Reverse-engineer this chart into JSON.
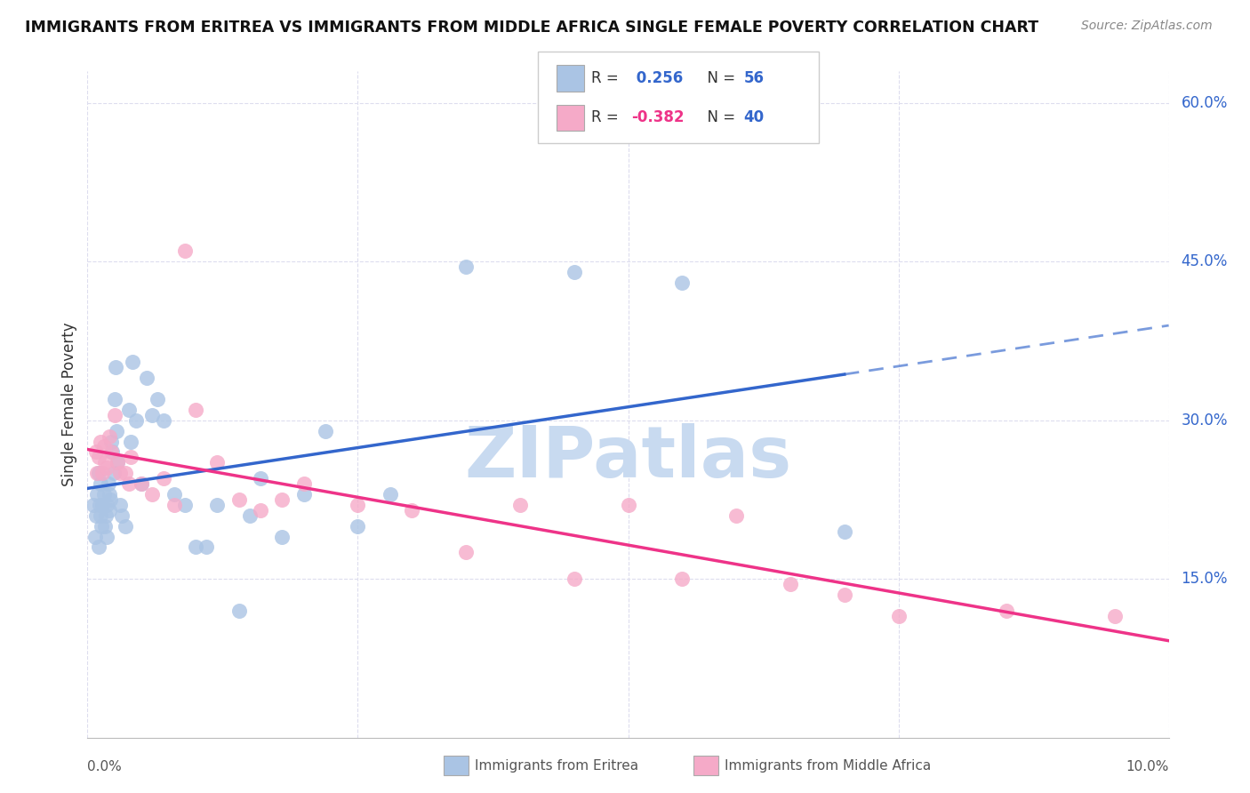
{
  "title": "IMMIGRANTS FROM ERITREA VS IMMIGRANTS FROM MIDDLE AFRICA SINGLE FEMALE POVERTY CORRELATION CHART",
  "source": "Source: ZipAtlas.com",
  "ylabel": "Single Female Poverty",
  "legend_label1": "Immigrants from Eritrea",
  "legend_label2": "Immigrants from Middle Africa",
  "r1": 0.256,
  "n1": 56,
  "r2": -0.382,
  "n2": 40,
  "blue_color": "#aac4e4",
  "pink_color": "#f5aac8",
  "blue_line_color": "#3366cc",
  "pink_line_color": "#ee3388",
  "xlim": [
    0.0,
    10.0
  ],
  "ylim": [
    0.0,
    63.0
  ],
  "yticks": [
    15.0,
    30.0,
    45.0,
    60.0
  ],
  "xtick_labels": [
    "0.0%",
    "10.0%"
  ],
  "blue_x": [
    0.05,
    0.07,
    0.08,
    0.09,
    0.1,
    0.1,
    0.11,
    0.12,
    0.12,
    0.13,
    0.14,
    0.15,
    0.16,
    0.17,
    0.18,
    0.18,
    0.19,
    0.2,
    0.2,
    0.21,
    0.22,
    0.23,
    0.24,
    0.25,
    0.26,
    0.27,
    0.28,
    0.3,
    0.32,
    0.35,
    0.38,
    0.4,
    0.42,
    0.45,
    0.5,
    0.55,
    0.6,
    0.65,
    0.7,
    0.8,
    0.9,
    1.0,
    1.1,
    1.2,
    1.4,
    1.5,
    1.6,
    1.8,
    2.0,
    2.2,
    2.5,
    2.8,
    3.5,
    4.5,
    5.5,
    7.0
  ],
  "blue_y": [
    22.0,
    19.0,
    21.0,
    23.0,
    18.0,
    25.0,
    22.0,
    21.0,
    24.0,
    20.0,
    22.0,
    23.0,
    20.0,
    21.0,
    19.0,
    22.0,
    24.0,
    23.0,
    21.5,
    22.5,
    28.0,
    27.0,
    25.0,
    32.0,
    35.0,
    29.0,
    26.0,
    22.0,
    21.0,
    20.0,
    31.0,
    28.0,
    35.5,
    30.0,
    24.0,
    34.0,
    30.5,
    32.0,
    30.0,
    23.0,
    22.0,
    18.0,
    18.0,
    22.0,
    12.0,
    21.0,
    24.5,
    19.0,
    23.0,
    29.0,
    20.0,
    23.0,
    44.5,
    44.0,
    43.0,
    19.5
  ],
  "pink_x": [
    0.08,
    0.09,
    0.1,
    0.12,
    0.14,
    0.15,
    0.16,
    0.18,
    0.2,
    0.22,
    0.25,
    0.28,
    0.3,
    0.35,
    0.38,
    0.4,
    0.5,
    0.6,
    0.7,
    0.8,
    0.9,
    1.0,
    1.2,
    1.4,
    1.6,
    1.8,
    2.0,
    2.5,
    3.0,
    3.5,
    4.0,
    4.5,
    5.0,
    5.5,
    6.0,
    6.5,
    7.0,
    7.5,
    8.5,
    9.5
  ],
  "pink_y": [
    27.0,
    25.0,
    26.5,
    28.0,
    25.0,
    27.5,
    26.0,
    25.5,
    28.5,
    27.0,
    30.5,
    26.0,
    25.0,
    25.0,
    24.0,
    26.5,
    24.0,
    23.0,
    24.5,
    22.0,
    46.0,
    31.0,
    26.0,
    22.5,
    21.5,
    22.5,
    24.0,
    22.0,
    21.5,
    17.5,
    22.0,
    15.0,
    22.0,
    15.0,
    21.0,
    14.5,
    13.5,
    11.5,
    12.0,
    11.5
  ],
  "watermark": "ZIPatlas",
  "watermark_color": "#c8daf0",
  "grid_color": "#ddddee"
}
